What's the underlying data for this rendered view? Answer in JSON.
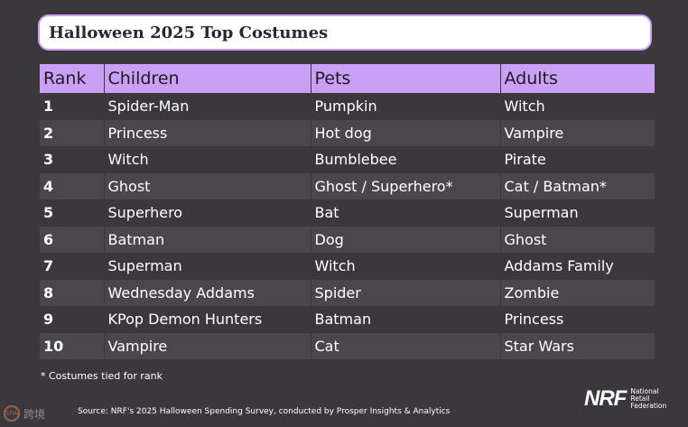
{
  "title": "Halloween 2025 Top Costumes",
  "colors": {
    "header_bg": "#c9a0f6",
    "page_bg": "#3b383d",
    "row_alt_bg": "#4a474c"
  },
  "table": {
    "headers": [
      "Rank",
      "Children",
      "Pets",
      "Adults"
    ],
    "rows": [
      [
        "1",
        "Spider-Man",
        "Pumpkin",
        "Witch"
      ],
      [
        "2",
        "Princess",
        "Hot dog",
        "Vampire"
      ],
      [
        "3",
        "Witch",
        "Bumblebee",
        "Pirate"
      ],
      [
        "4",
        "Ghost",
        "Ghost / Superhero*",
        "Cat / Batman*"
      ],
      [
        "5",
        "Superhero",
        "Bat",
        "Superman"
      ],
      [
        "6",
        "Batman",
        "Dog",
        "Ghost"
      ],
      [
        "7",
        "Superman",
        "Witch",
        "Addams Family"
      ],
      [
        "8",
        "Wednesday Addams",
        "Spider",
        "Zombie"
      ],
      [
        "9",
        "KPop Demon Hunters",
        "Batman",
        "Princess"
      ],
      [
        "10",
        "Vampire",
        "Cat",
        "Star Wars"
      ]
    ]
  },
  "footnote": "* Costumes tied for rank",
  "source": "Source: NRF's 2025 Halloween Spending Survey, conducted by Prosper Insights & Analytics",
  "watermark": {
    "seal": "SPAc",
    "text": "跨境"
  },
  "logo": {
    "mark": "NRF",
    "words": [
      "National",
      "Retail",
      "Federation"
    ]
  }
}
